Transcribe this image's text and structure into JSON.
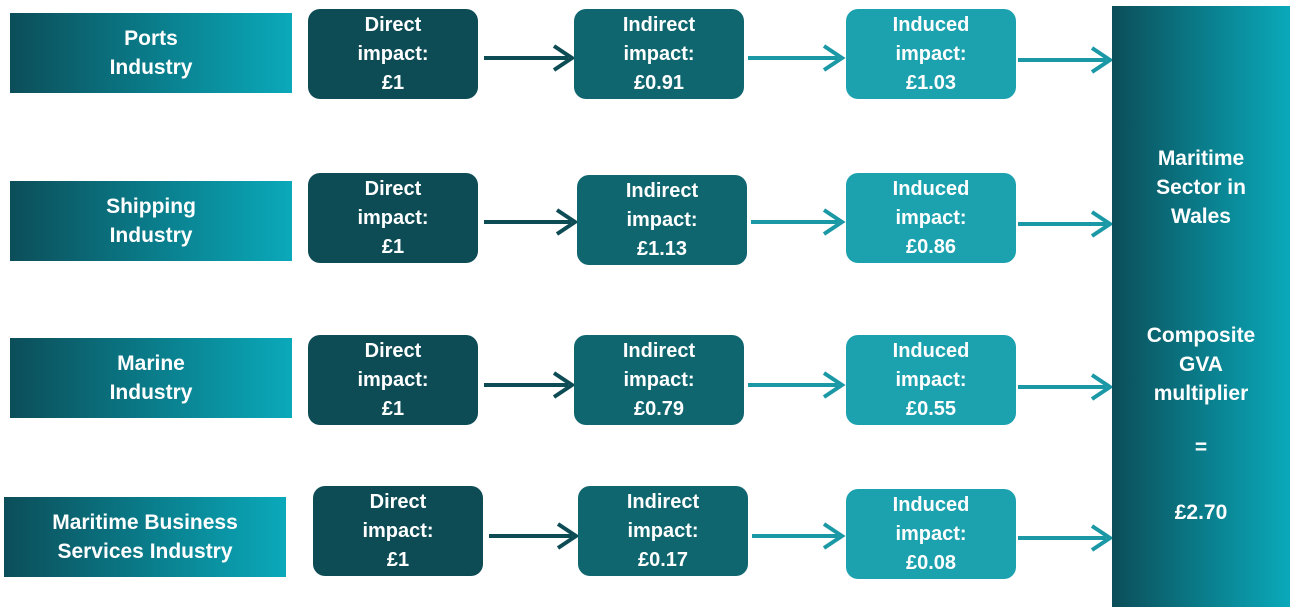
{
  "rows": [
    {
      "industry": [
        "Ports",
        "Industry"
      ],
      "direct": [
        "Direct",
        "impact:",
        "£1"
      ],
      "indirect": [
        "Indirect",
        "impact:",
        "£0.91"
      ],
      "induced": [
        "Induced",
        "impact:",
        "£1.03"
      ]
    },
    {
      "industry": [
        "Shipping",
        "Industry"
      ],
      "direct": [
        "Direct",
        "impact:",
        "£1"
      ],
      "indirect": [
        "Indirect",
        "impact:",
        "£1.13"
      ],
      "induced": [
        "Induced",
        "impact:",
        "£0.86"
      ]
    },
    {
      "industry": [
        "Marine",
        "Industry"
      ],
      "direct": [
        "Direct",
        "impact:",
        "£1"
      ],
      "indirect": [
        "Indirect",
        "impact:",
        "£0.79"
      ],
      "induced": [
        "Induced",
        "impact:",
        "£0.55"
      ]
    },
    {
      "industry": [
        "Maritime Business",
        "Services Industry"
      ],
      "direct": [
        "Direct",
        "impact:",
        "£1"
      ],
      "indirect": [
        "Indirect",
        "impact:",
        "£0.17"
      ],
      "induced": [
        "Induced",
        "impact:",
        "£0.08"
      ]
    }
  ],
  "summary": {
    "sector": [
      "Maritime",
      "Sector in",
      "Wales"
    ],
    "multiplier": [
      "Composite",
      "GVA",
      "multiplier"
    ],
    "equals": "=",
    "value": "£2.70"
  }
}
